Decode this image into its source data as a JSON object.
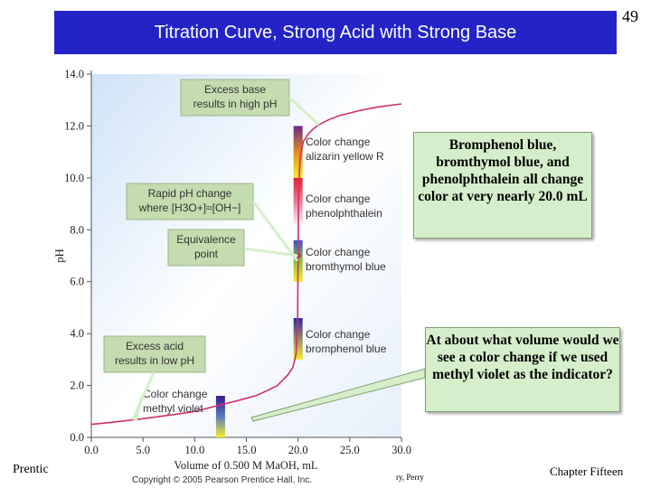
{
  "slide": {
    "title": "Titration Curve, Strong Acid with Strong Base",
    "number": "49",
    "footer_left": "Prentic",
    "footer_mid": "ry, Perry",
    "footer_right": "Chapter Fifteen",
    "copyright": "Copyright © 2005 Pearson Prentice Hall, Inc."
  },
  "callouts": {
    "indicators": "Bromphenol blue, bromthymol blue, and phenolphthalein all change color at very nearly 20.0 mL",
    "question": "At about what volume would we see a color change if we used methyl violet as the indicator?"
  },
  "chart_data": {
    "type": "line",
    "title": "",
    "xlabel": "Volume of 0.500 M MaOH, mL",
    "ylabel": "pH",
    "xlim": [
      0,
      30
    ],
    "ylim": [
      0,
      14
    ],
    "x_ticks": [
      "0.0",
      "5.0",
      "10.0",
      "15.0",
      "20.0",
      "25.0",
      "30.0"
    ],
    "y_ticks": [
      "0.0",
      "2.0",
      "4.0",
      "6.0",
      "8.0",
      "10.0",
      "12.0",
      "14.0"
    ],
    "series": [
      {
        "x": [
          0,
          2,
          5,
          8,
          10,
          12,
          14,
          16,
          17,
          18,
          18.5,
          19,
          19.5,
          19.8,
          19.95,
          20,
          20.05,
          20.2,
          20.5,
          21,
          21.5,
          22,
          23,
          24,
          25,
          26,
          27,
          28,
          30
        ],
        "y": [
          0.5,
          0.58,
          0.72,
          0.88,
          1.0,
          1.2,
          1.4,
          1.62,
          1.8,
          2.0,
          2.2,
          2.4,
          2.7,
          3.2,
          4.4,
          7.0,
          9.6,
          10.8,
          11.4,
          11.7,
          11.9,
          12.05,
          12.25,
          12.4,
          12.5,
          12.6,
          12.68,
          12.75,
          12.85
        ],
        "color": "#d0306a"
      }
    ],
    "equivalence_point": {
      "x": 20.0,
      "y": 7.0
    },
    "indicator_bars": [
      {
        "x": 20.0,
        "y_low": 10.0,
        "y_high": 12.0,
        "colors": [
          "#f5ee2a",
          "#e08a20",
          "#6b2a8a"
        ]
      },
      {
        "x": 20.0,
        "y_low": 8.2,
        "y_high": 10.0,
        "colors": [
          "#f2f2f2",
          "#f07a9a",
          "#e0202a"
        ]
      },
      {
        "x": 20.0,
        "y_low": 6.0,
        "y_high": 7.6,
        "colors": [
          "#f5ee2a",
          "#8abf3a",
          "#3a4fd0"
        ]
      },
      {
        "x": 20.0,
        "y_low": 3.0,
        "y_high": 4.6,
        "colors": [
          "#f5ee2a",
          "#9a8a6a",
          "#2a2aa0"
        ]
      },
      {
        "x": 12.5,
        "y_low": 0.0,
        "y_high": 1.6,
        "colors": [
          "#f5ee2a",
          "#5a7ac0",
          "#3a1a8a"
        ]
      }
    ],
    "annotations": [
      {
        "text": [
          "Excess base",
          "results in high pH"
        ],
        "boxed": true
      },
      {
        "text": [
          "Color change",
          "alizarin yellow R"
        ],
        "boxed": false
      },
      {
        "text": [
          "Rapid pH change",
          "where [H3O+]≈[OH−]"
        ],
        "boxed": true
      },
      {
        "text": [
          "Color change",
          "phenolphthalein"
        ],
        "boxed": false
      },
      {
        "text": [
          "Equivalence",
          "point"
        ],
        "boxed": true
      },
      {
        "text": [
          "Color change",
          "bromthymol blue"
        ],
        "boxed": false
      },
      {
        "text": [
          "Color change",
          "bromphenol blue"
        ],
        "boxed": false
      },
      {
        "text": [
          "Excess acid",
          "results in low pH"
        ],
        "boxed": true
      },
      {
        "text": [
          "Color change",
          "methyl violet"
        ],
        "boxed": false
      }
    ],
    "grid": false,
    "legend": "none"
  }
}
